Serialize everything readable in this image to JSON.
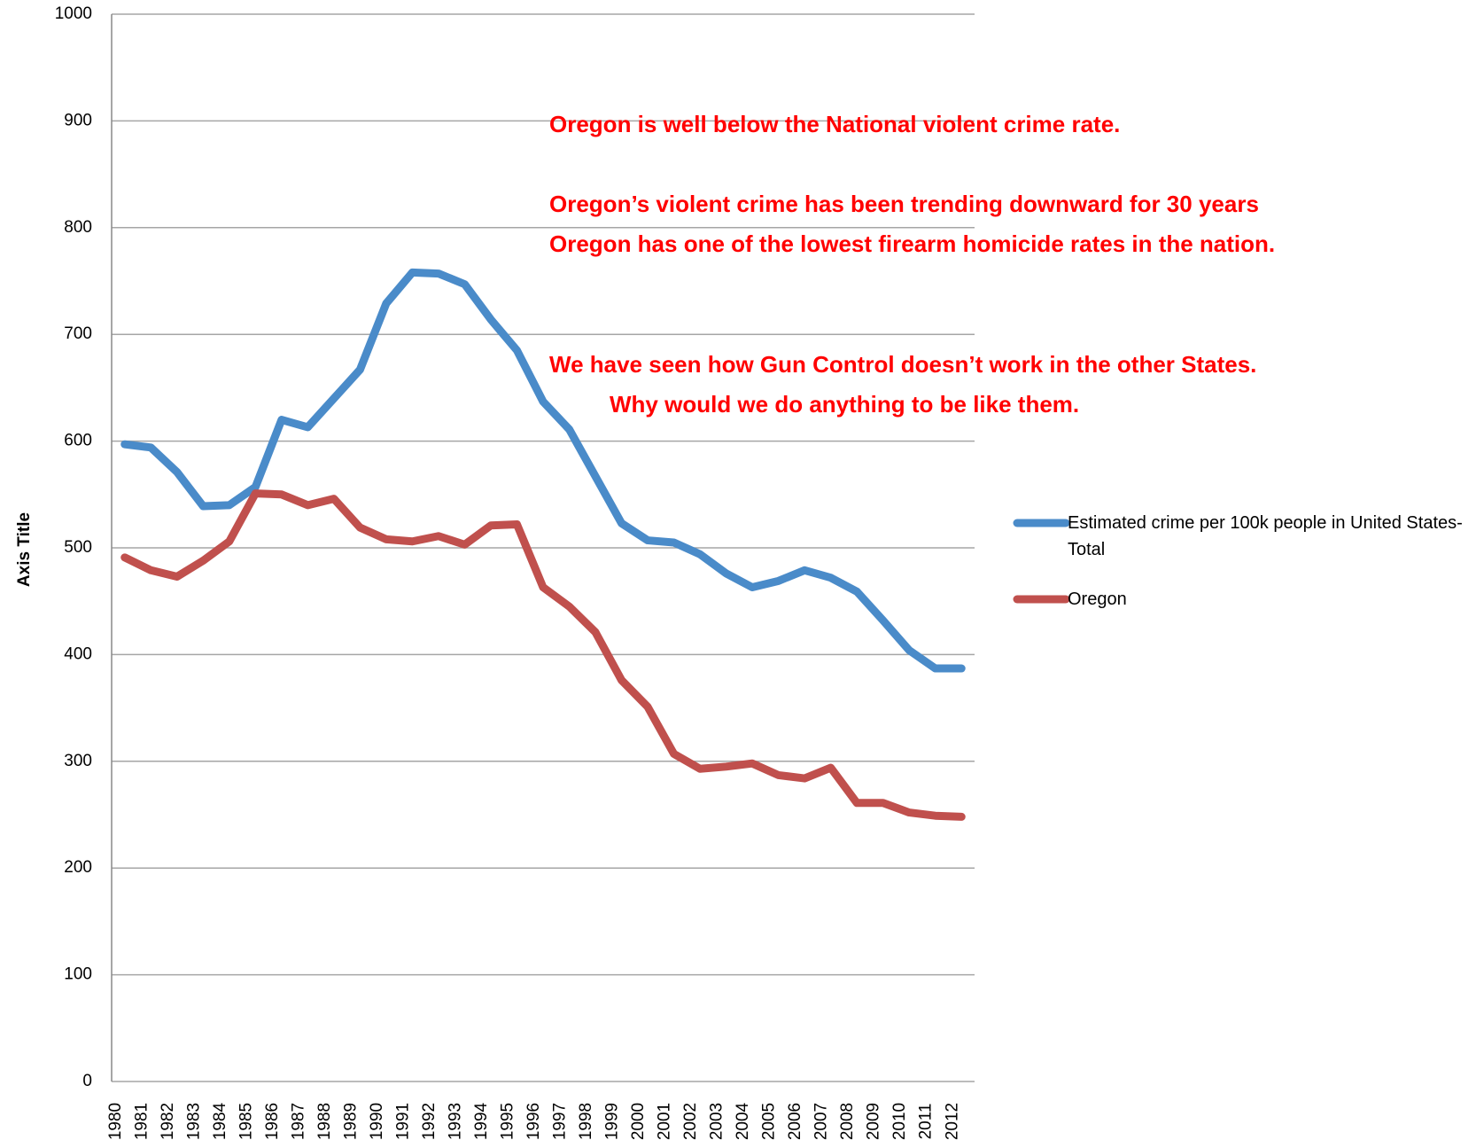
{
  "chart_data": {
    "type": "line",
    "y_axis_label": "Axis Title",
    "categories": [
      "1980",
      "1981",
      "1982",
      "1983",
      "1984",
      "1985",
      "1986",
      "1987",
      "1988",
      "1989",
      "1990",
      "1991",
      "1992",
      "1993",
      "1994",
      "1995",
      "1996",
      "1997",
      "1998",
      "1999",
      "2000",
      "2001",
      "2002",
      "2003",
      "2004",
      "2005",
      "2006",
      "2007",
      "2008",
      "2009",
      "2010",
      "2011",
      "2012"
    ],
    "series": [
      {
        "name": "Estimated crime per 100k people in United States-Total",
        "color": "#4a8bc9",
        "values": [
          597,
          594,
          571,
          539,
          540,
          557,
          620,
          613,
          640,
          667,
          729,
          758,
          757,
          747,
          714,
          685,
          637,
          611,
          567,
          523,
          507,
          505,
          494,
          476,
          463,
          469,
          479,
          472,
          459,
          432,
          404,
          387,
          387
        ]
      },
      {
        "name": "Oregon",
        "color": "#c0504d",
        "values": [
          491,
          479,
          473,
          488,
          506,
          551,
          550,
          540,
          546,
          519,
          508,
          506,
          511,
          503,
          521,
          522,
          463,
          445,
          421,
          376,
          351,
          307,
          293,
          295,
          298,
          287,
          284,
          294,
          261,
          261,
          252,
          249,
          248
        ]
      }
    ],
    "ylim": [
      0,
      1000
    ],
    "yticks": [
      0,
      100,
      200,
      300,
      400,
      500,
      600,
      700,
      800,
      900,
      1000
    ],
    "grid": true,
    "annotations": [
      "Oregon is well below the National violent crime rate.",
      "Oregon’s violent crime has been trending downward for 30 years",
      "Oregon has one of the lowest firearm homicide rates in the nation.",
      "We have seen how Gun Control doesn’t work in the other States.",
      "Why would we do anything to be like them."
    ]
  }
}
